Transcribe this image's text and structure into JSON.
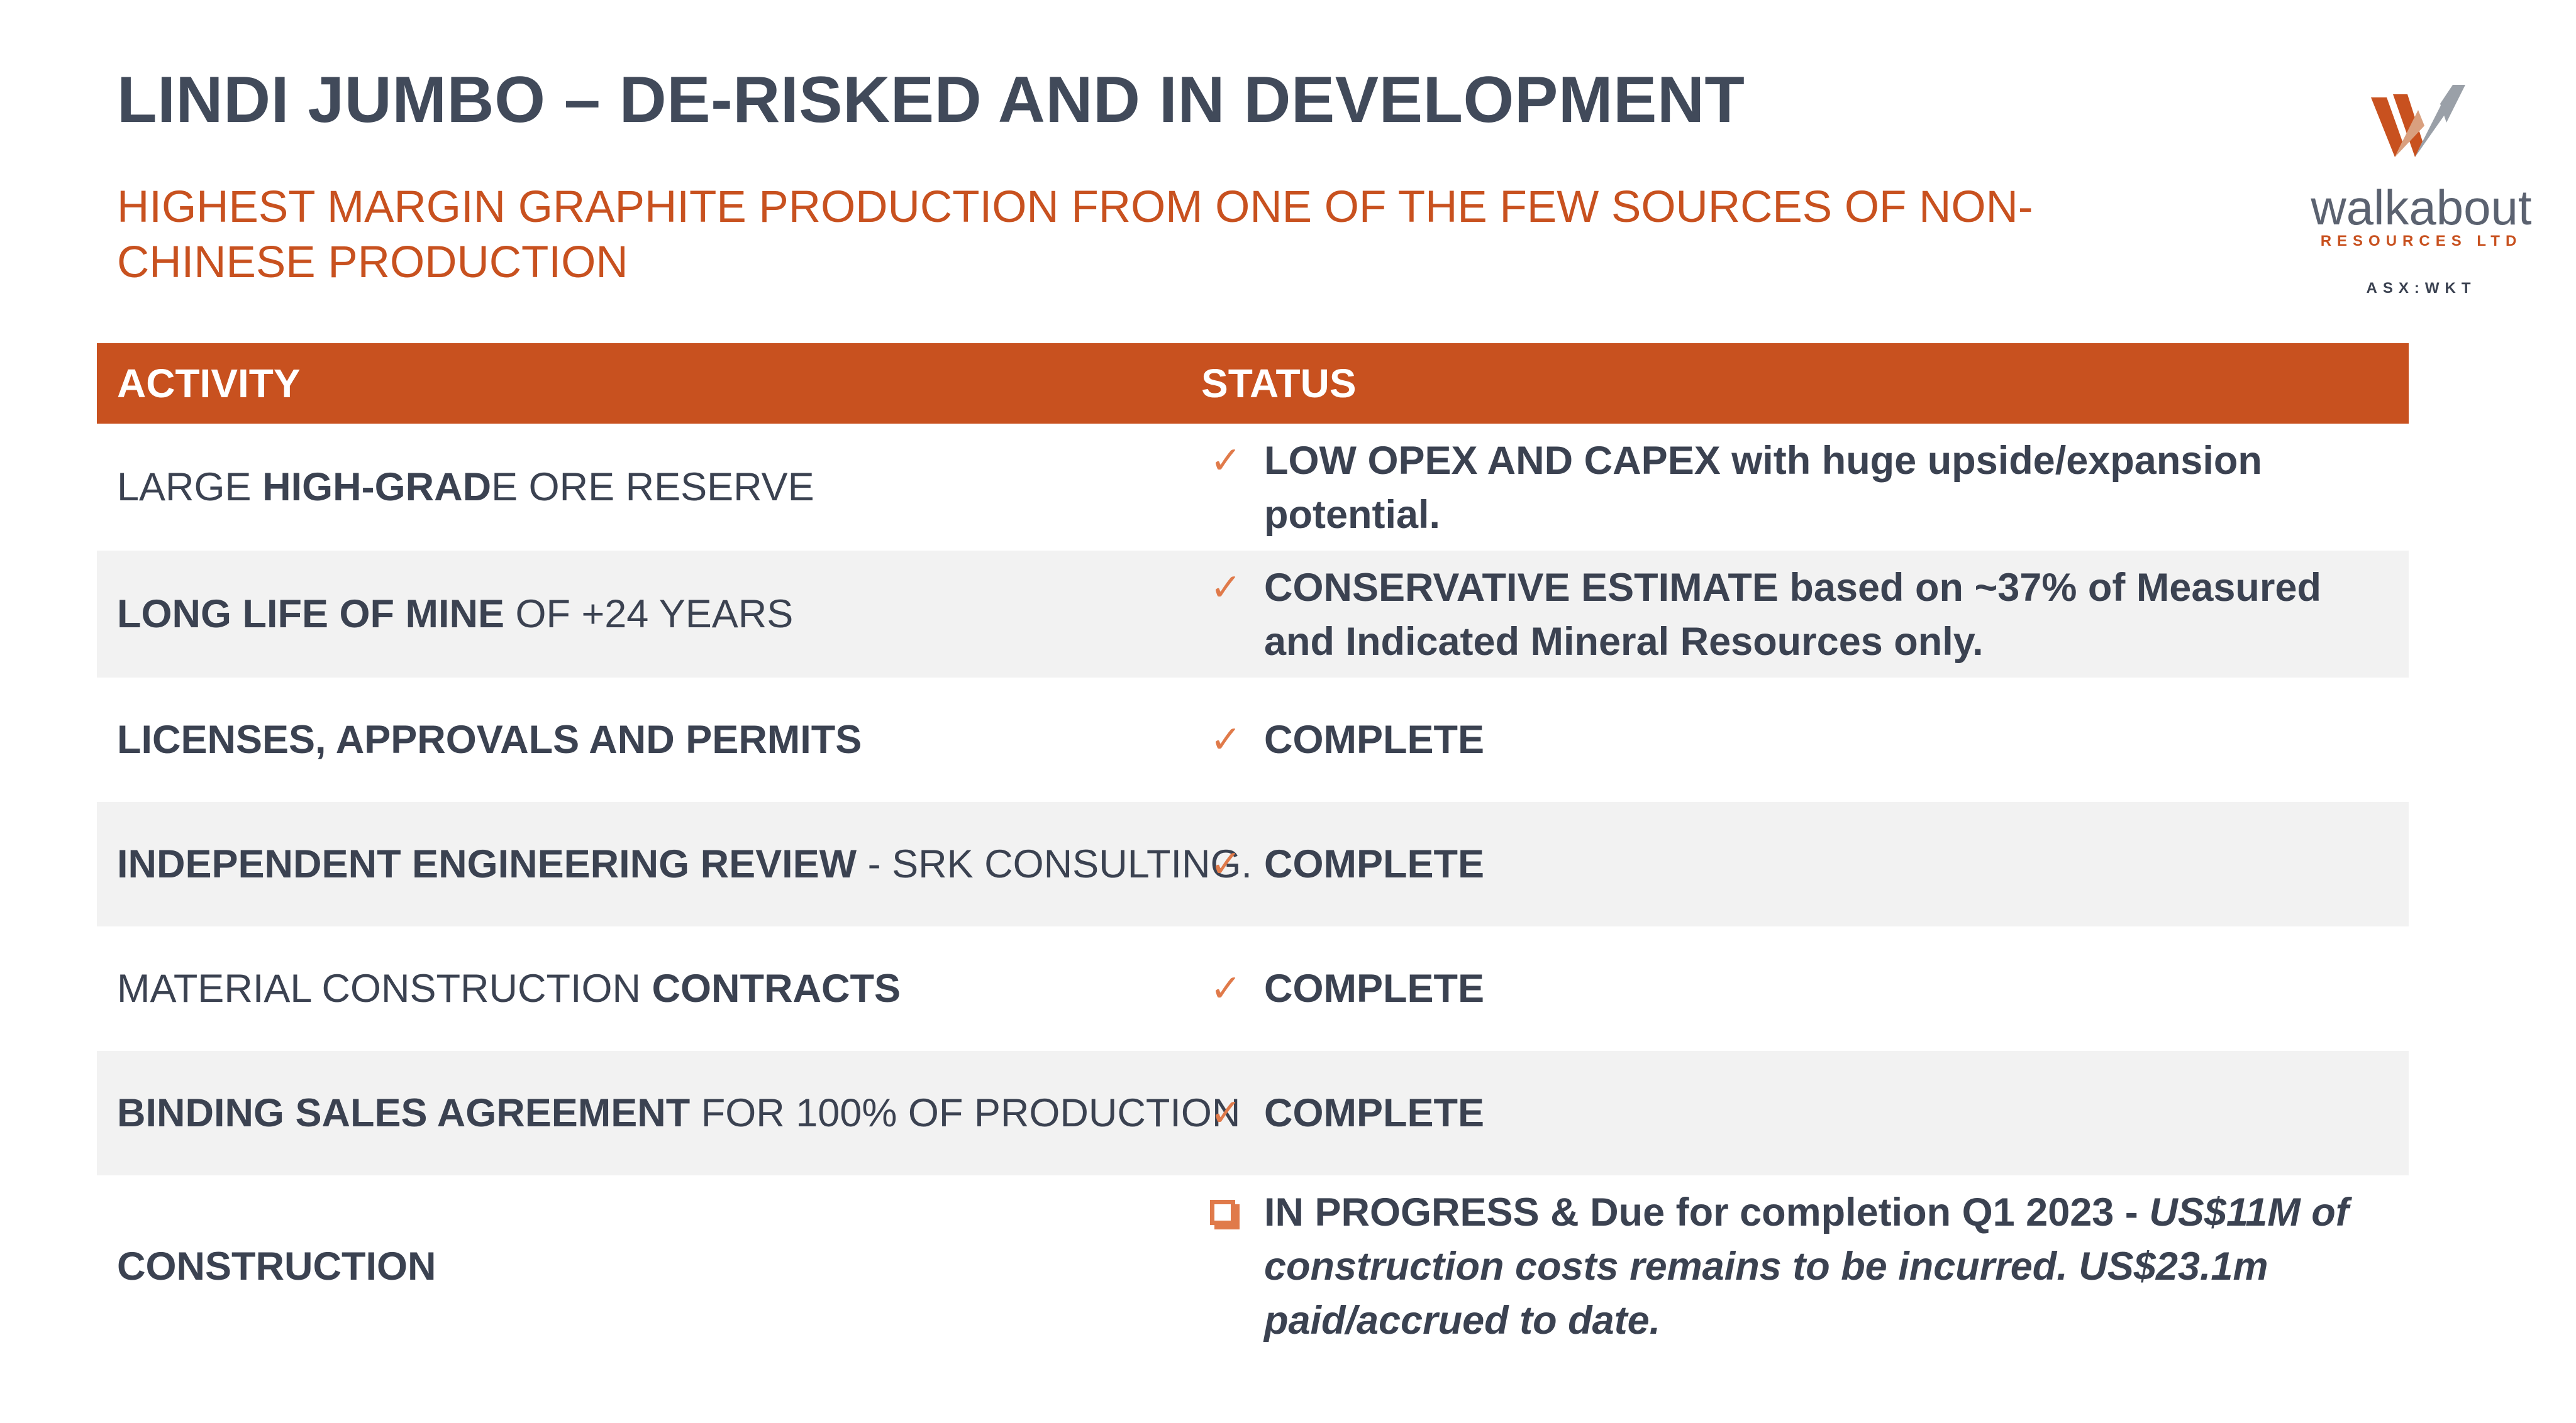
{
  "title": "LINDI JUMBO – DE-RISKED AND IN DEVELOPMENT",
  "subtitle": "HIGHEST MARGIN GRAPHITE PRODUCTION FROM ONE OF THE FEW SOURCES OF NON-CHINESE PRODUCTION",
  "logo": {
    "name": "walkabout",
    "sub": "RESOURCES LTD",
    "ticker": "ASX:WKT",
    "colors": {
      "orange": "#c8511f",
      "gray": "#8a8f98"
    }
  },
  "table": {
    "headers": {
      "activity": "ACTIVITY",
      "status": "STATUS"
    },
    "rows": [
      {
        "activity": {
          "a": "LARGE ",
          "b": "HIGH-GRAD",
          "c": "E ORE  RESERVE",
          "d": ""
        },
        "icon": "check-icon",
        "status": {
          "bold": "LOW OPEX AND CAPEX with huge upside/expansion potential.",
          "italic": ""
        }
      },
      {
        "activity": {
          "a": "",
          "b": "LONG LIFE OF MINE",
          "c": " OF +24 YEARS",
          "d": ""
        },
        "icon": "check-icon",
        "status": {
          "bold": "CONSERVATIVE ESTIMATE based on ~37% of Measured and Indicated Mineral  Resources only.",
          "italic": ""
        }
      },
      {
        "activity": {
          "a": "",
          "b": "LICENSES, APPROVALS AND PERMITS",
          "c": "",
          "d": ""
        },
        "icon": "check-icon",
        "status": {
          "bold": "COMPLETE",
          "italic": ""
        }
      },
      {
        "activity": {
          "a": "",
          "b": "INDEPENDENT ENGINEERING REVIEW",
          "c": " - SRK CONSULTING.",
          "d": ""
        },
        "icon": "check-icon",
        "status": {
          "bold": "COMPLETE",
          "italic": ""
        }
      },
      {
        "activity": {
          "a": "MATERIAL CONSTRUCTION ",
          "b": "CONTRACTS",
          "c": "",
          "d": ""
        },
        "icon": "check-icon",
        "status": {
          "bold": "COMPLETE",
          "italic": ""
        }
      },
      {
        "activity": {
          "a": "",
          "b": "BINDING SALES AGREEMENT",
          "c": " FOR 100% OF PRODUCTION",
          "d": ""
        },
        "icon": "check-icon",
        "status": {
          "bold": "COMPLETE",
          "italic": ""
        }
      },
      {
        "activity": {
          "a": "",
          "b": "CONSTRUCTION",
          "c": "",
          "d": ""
        },
        "icon": "checkbox-icon",
        "status": {
          "bold": "IN PROGRESS & Due for completion Q1 2023 - ",
          "italic": "US$11M of construction costs remains to be incurred.  US$23.1m paid/accrued to date."
        }
      }
    ]
  }
}
